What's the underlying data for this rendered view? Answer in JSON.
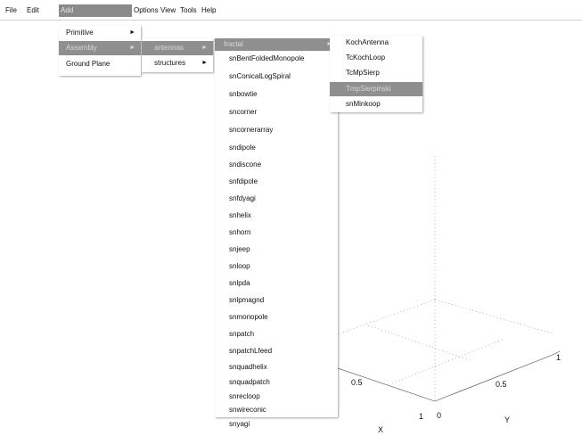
{
  "menubar": {
    "items": [
      {
        "label": "File"
      },
      {
        "label": "Edit"
      },
      {
        "label": "Add"
      },
      {
        "label": "Options"
      },
      {
        "label": "View"
      },
      {
        "label": "Tools"
      },
      {
        "label": "Help"
      }
    ]
  },
  "add_menu": {
    "items": [
      {
        "label": "Primitive"
      },
      {
        "label": "Assembly"
      },
      {
        "label": "Ground Plane"
      }
    ]
  },
  "assembly_menu": {
    "items": [
      {
        "label": "antennas"
      },
      {
        "label": "structures"
      }
    ]
  },
  "antennas_menu": {
    "items": [
      {
        "label": "fractal"
      },
      {
        "label": "snBentFoldedMonopole"
      },
      {
        "label": "snConicalLogSpiral"
      },
      {
        "label": "snbowtie"
      },
      {
        "label": "sncorner"
      },
      {
        "label": "sncornerarray"
      },
      {
        "label": "sndipole"
      },
      {
        "label": "sndiscone"
      },
      {
        "label": "snfdipole"
      },
      {
        "label": "snfdyagi"
      },
      {
        "label": "snhelix"
      },
      {
        "label": "snhorn"
      },
      {
        "label": "snjeep"
      },
      {
        "label": "snloop"
      },
      {
        "label": "snlpda"
      },
      {
        "label": "snlpmagnd"
      },
      {
        "label": "snmonopole"
      },
      {
        "label": "snpatch"
      },
      {
        "label": "snpatchLfeed"
      },
      {
        "label": "snquadhelix"
      },
      {
        "label": "snquadpatch"
      },
      {
        "label": "snrecloop"
      },
      {
        "label": "snwireconic"
      },
      {
        "label": "snyagi"
      }
    ]
  },
  "fractal_menu": {
    "items": [
      {
        "label": "KochAntenna"
      },
      {
        "label": "TcKochLoop"
      },
      {
        "label": "TcMpSierp"
      },
      {
        "label": "TmpSierpinski"
      },
      {
        "label": "snMinkoop"
      }
    ]
  },
  "axes": {
    "tick_left": "0.5",
    "tick_right": "0.5",
    "tick_one_left": "1",
    "tick_zero": "0",
    "tick_one_right": "1",
    "x_label": "X",
    "y_label": "Y"
  }
}
